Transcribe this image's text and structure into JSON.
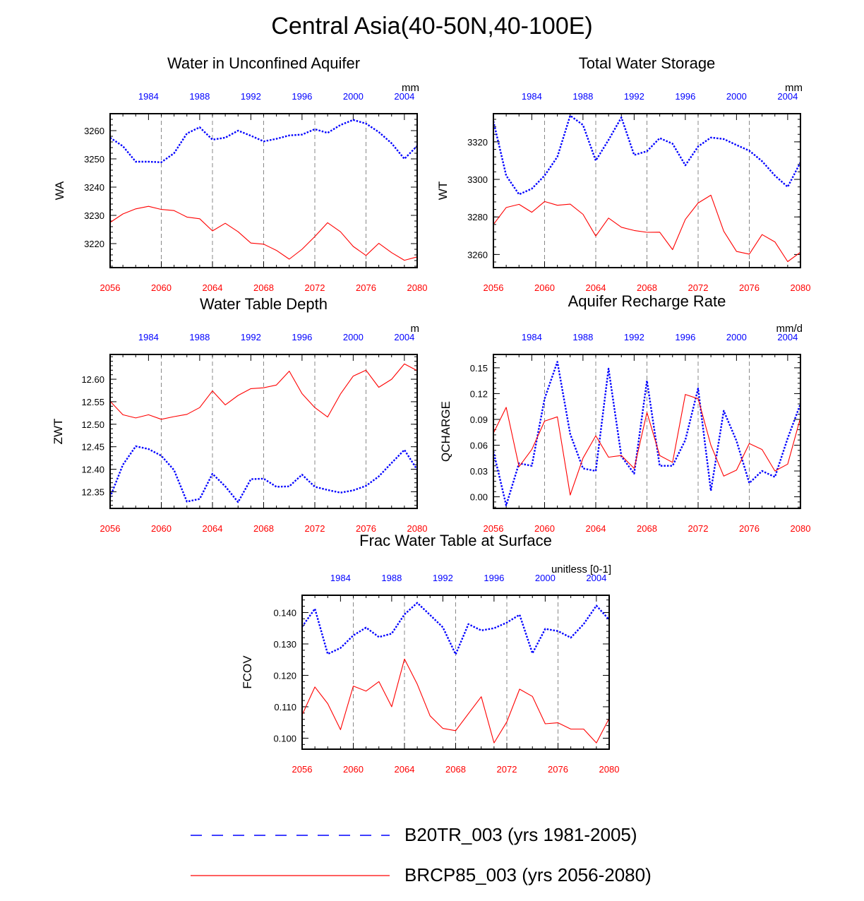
{
  "title": "Central Asia(40-50N,40-100E)",
  "colors": {
    "series_blue": "#0000ff",
    "series_red": "#ff0000",
    "axis": "#000000",
    "grid": "#888888"
  },
  "legend": {
    "entries": [
      {
        "label": "B20TR_003 (yrs 1981-2005)",
        "color": "#0000ff",
        "style": "dashed"
      },
      {
        "label": "BRCP85_003 (yrs 2056-2080)",
        "color": "#ff0000",
        "style": "solid"
      }
    ]
  },
  "chart_data": [
    {
      "type": "line",
      "title": "Water in Unconfined Aquifer",
      "ylabel": "WA",
      "units": "mm",
      "ylim": [
        3211.5,
        3266
      ],
      "yticks": [
        3220,
        3230,
        3240,
        3250,
        3260
      ],
      "ytick_labels": [
        "3220",
        "3230",
        "3240",
        "3250",
        "3260"
      ],
      "x_bottom": {
        "range": [
          2056,
          2080
        ],
        "ticks": [
          2056,
          2060,
          2064,
          2068,
          2072,
          2076,
          2080
        ]
      },
      "x_top": {
        "range": [
          1981,
          2005
        ],
        "ticks": [
          1984,
          1988,
          1992,
          1996,
          2000,
          2004
        ]
      },
      "gridlines_x_bottom": [
        2060,
        2064,
        2068,
        2072,
        2076
      ],
      "series": [
        {
          "name": "B20TR_003 (yrs 1981-2005)",
          "axis": "top",
          "style": "dashed",
          "values": [
            3257.5,
            3254.5,
            3249,
            3249,
            3248.8,
            3252,
            3259,
            3261.2,
            3256.8,
            3257.5,
            3260,
            3258.2,
            3256.2,
            3257.1,
            3258.3,
            3258.6,
            3260.5,
            3259.2,
            3262,
            3263.8,
            3262.5,
            3259.5,
            3255.5,
            3250,
            3254.6
          ]
        },
        {
          "name": "BRCP85_003 (yrs 2056-2080)",
          "axis": "bottom",
          "style": "solid",
          "values": [
            3227.5,
            3230.5,
            3232.3,
            3233.2,
            3232.1,
            3231.7,
            3229.4,
            3228.8,
            3224.5,
            3227.2,
            3224.2,
            3220.2,
            3219.8,
            3217.6,
            3214.5,
            3218,
            3222.5,
            3227.4,
            3224.2,
            3219,
            3215.8,
            3220.1,
            3216.8,
            3214.1,
            3215.3
          ]
        }
      ]
    },
    {
      "type": "line",
      "title": "Total Water Storage",
      "ylabel": "WT",
      "units": "mm",
      "ylim": [
        3253,
        3335
      ],
      "yticks": [
        3260,
        3280,
        3300,
        3320
      ],
      "ytick_labels": [
        "3260",
        "3280",
        "3300",
        "3320"
      ],
      "x_bottom": {
        "range": [
          2056,
          2080
        ],
        "ticks": [
          2056,
          2060,
          2064,
          2068,
          2072,
          2076,
          2080
        ]
      },
      "x_top": {
        "range": [
          1981,
          2005
        ],
        "ticks": [
          1984,
          1988,
          1992,
          1996,
          2000,
          2004
        ]
      },
      "gridlines_x_bottom": [
        2060,
        2064,
        2068,
        2072,
        2076
      ],
      "series": [
        {
          "name": "B20TR_003 (yrs 1981-2005)",
          "axis": "top",
          "style": "dashed",
          "values": [
            3331,
            3302,
            3292,
            3295,
            3302,
            3312,
            3334,
            3329,
            3310,
            3321,
            3333,
            3313,
            3315,
            3322,
            3319,
            3307.5,
            3317.5,
            3322.3,
            3321.5,
            3318.3,
            3315.3,
            3309.7,
            3302,
            3296,
            3309.1
          ]
        },
        {
          "name": "BRCP85_003 (yrs 2056-2080)",
          "axis": "bottom",
          "style": "solid",
          "values": [
            3276,
            3285,
            3286.7,
            3282.5,
            3288.2,
            3286.2,
            3286.8,
            3281.4,
            3269.8,
            3279.4,
            3274.5,
            3272.8,
            3271.8,
            3271.9,
            3262.6,
            3278.7,
            3287.4,
            3291.6,
            3272.4,
            3261.6,
            3260.2,
            3270.6,
            3266.7,
            3256.2,
            3261.2
          ]
        }
      ]
    },
    {
      "type": "line",
      "title": "Water Table Depth",
      "ylabel": "ZWT",
      "units": "m",
      "ylim": [
        12.313,
        12.655
      ],
      "yticks": [
        12.35,
        12.4,
        12.45,
        12.5,
        12.55,
        12.6
      ],
      "ytick_labels": [
        "12.35",
        "12.40",
        "12.45",
        "12.50",
        "12.55",
        "12.60"
      ],
      "x_bottom": {
        "range": [
          2056,
          2080
        ],
        "ticks": [
          2056,
          2060,
          2064,
          2068,
          2072,
          2076,
          2080
        ]
      },
      "x_top": {
        "range": [
          1981,
          2005
        ],
        "ticks": [
          1984,
          1988,
          1992,
          1996,
          2000,
          2004
        ]
      },
      "gridlines_x_bottom": [
        2060,
        2064,
        2068,
        2072,
        2076
      ],
      "series": [
        {
          "name": "B20TR_003 (yrs 1981-2005)",
          "axis": "top",
          "style": "dashed",
          "values": [
            12.338,
            12.41,
            12.451,
            12.445,
            12.43,
            12.398,
            12.328,
            12.334,
            12.39,
            12.362,
            12.327,
            12.378,
            12.379,
            12.361,
            12.362,
            12.388,
            12.361,
            12.354,
            12.348,
            12.353,
            12.363,
            12.384,
            12.414,
            12.443,
            12.399
          ]
        },
        {
          "name": "BRCP85_003 (yrs 2056-2080)",
          "axis": "bottom",
          "style": "solid",
          "values": [
            12.551,
            12.521,
            12.514,
            12.521,
            12.511,
            12.517,
            12.522,
            12.537,
            12.574,
            12.543,
            12.564,
            12.579,
            12.581,
            12.587,
            12.618,
            12.568,
            12.537,
            12.516,
            12.567,
            12.607,
            12.62,
            12.582,
            12.6,
            12.634,
            12.619
          ]
        }
      ]
    },
    {
      "type": "line",
      "title": "Aquifer Recharge Rate",
      "ylabel": "QCHARGE",
      "units": "mm/d",
      "ylim": [
        -0.0135,
        0.1655
      ],
      "yticks": [
        0.0,
        0.03,
        0.06,
        0.09,
        0.12,
        0.15
      ],
      "ytick_labels": [
        "0.00",
        "0.03",
        "0.06",
        "0.09",
        "0.12",
        "0.15"
      ],
      "x_bottom": {
        "range": [
          2056,
          2080
        ],
        "ticks": [
          2056,
          2060,
          2064,
          2068,
          2072,
          2076,
          2080
        ]
      },
      "x_top": {
        "range": [
          1981,
          2005
        ],
        "ticks": [
          1984,
          1988,
          1992,
          1996,
          2000,
          2004
        ]
      },
      "gridlines_x_bottom": [
        2060,
        2064,
        2068,
        2072,
        2076
      ],
      "series": [
        {
          "name": "B20TR_003 (yrs 1981-2005)",
          "axis": "top",
          "style": "dashed",
          "values": [
            0.053,
            -0.01,
            0.039,
            0.036,
            0.114,
            0.157,
            0.073,
            0.033,
            0.03,
            0.149,
            0.047,
            0.027,
            0.135,
            0.036,
            0.036,
            0.066,
            0.126,
            0.007,
            0.1,
            0.065,
            0.016,
            0.03,
            0.023,
            0.068,
            0.108
          ]
        },
        {
          "name": "BRCP85_003 (yrs 2056-2080)",
          "axis": "bottom",
          "style": "solid",
          "values": [
            0.074,
            0.104,
            0.035,
            0.055,
            0.088,
            0.093,
            0.002,
            0.045,
            0.071,
            0.046,
            0.048,
            0.033,
            0.098,
            0.048,
            0.04,
            0.119,
            0.114,
            0.06,
            0.024,
            0.031,
            0.062,
            0.055,
            0.03,
            0.038,
            0.092
          ]
        }
      ]
    },
    {
      "type": "line",
      "title": "Frac Water Table at Surface",
      "ylabel": "FCOV",
      "units": "unitless [0-1]",
      "ylim": [
        0.0965,
        0.1455
      ],
      "yticks": [
        0.1,
        0.11,
        0.12,
        0.13,
        0.14
      ],
      "ytick_labels": [
        "0.100",
        "0.110",
        "0.120",
        "0.130",
        "0.140"
      ],
      "x_bottom": {
        "range": [
          2056,
          2080
        ],
        "ticks": [
          2056,
          2060,
          2064,
          2068,
          2072,
          2076,
          2080
        ]
      },
      "x_top": {
        "range": [
          1981,
          2005
        ],
        "ticks": [
          1984,
          1988,
          1992,
          1996,
          2000,
          2004
        ]
      },
      "gridlines_x_bottom": [
        2060,
        2064,
        2068,
        2072,
        2076
      ],
      "series": [
        {
          "name": "B20TR_003 (yrs 1981-2005)",
          "axis": "top",
          "style": "dashed",
          "values": [
            0.1355,
            0.1412,
            0.1268,
            0.1287,
            0.1327,
            0.1352,
            0.1322,
            0.1333,
            0.1394,
            0.1431,
            0.1392,
            0.1353,
            0.1267,
            0.1363,
            0.1343,
            0.135,
            0.1368,
            0.1393,
            0.127,
            0.1348,
            0.1341,
            0.132,
            0.1363,
            0.1422,
            0.1377
          ]
        },
        {
          "name": "BRCP85_003 (yrs 2056-2080)",
          "axis": "bottom",
          "style": "solid",
          "values": [
            0.1074,
            0.1163,
            0.111,
            0.1027,
            0.1166,
            0.115,
            0.118,
            0.11,
            0.1252,
            0.1172,
            0.1071,
            0.1031,
            0.1024,
            0.1078,
            0.1132,
            0.0985,
            0.1052,
            0.1156,
            0.1133,
            0.1046,
            0.1049,
            0.1029,
            0.1029,
            0.0985,
            0.1063
          ]
        }
      ]
    }
  ]
}
